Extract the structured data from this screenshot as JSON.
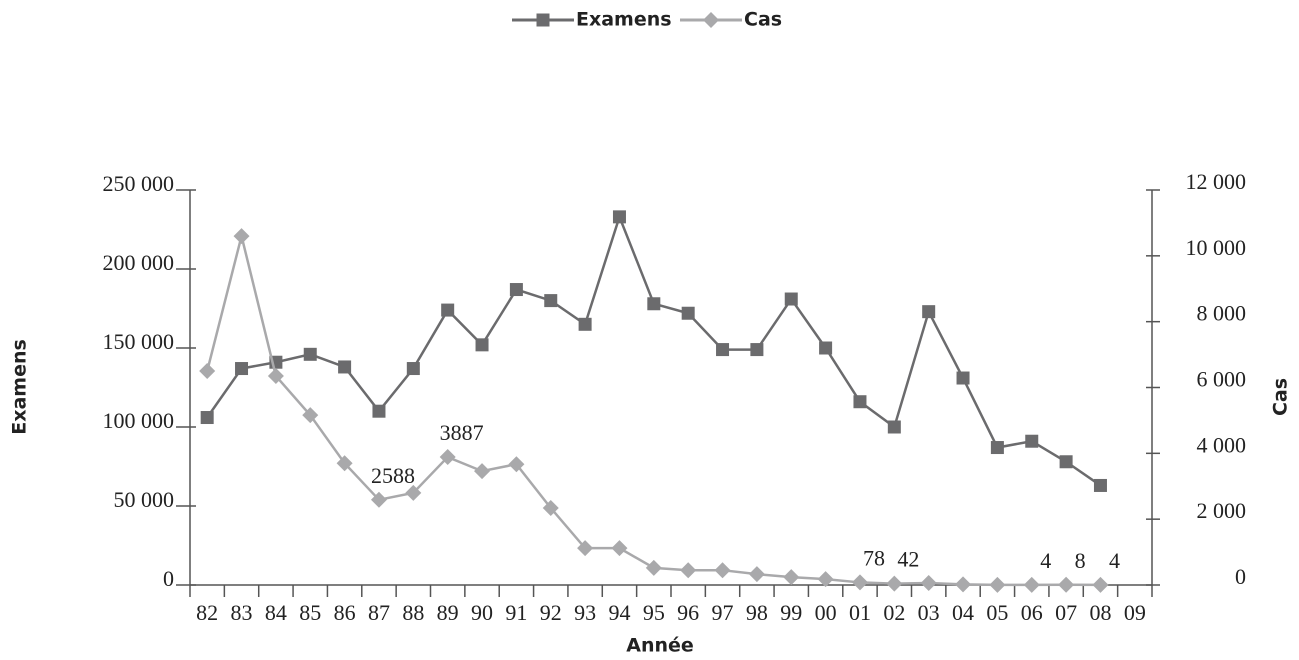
{
  "chart_data": {
    "type": "line",
    "legend": "top",
    "categories": [
      "82",
      "83",
      "84",
      "85",
      "86",
      "87",
      "88",
      "89",
      "90",
      "91",
      "92",
      "93",
      "94",
      "95",
      "96",
      "97",
      "98",
      "99",
      "00",
      "01",
      "02",
      "03",
      "04",
      "05",
      "06",
      "07",
      "08",
      "09"
    ],
    "x_label": "Année",
    "y_label": "Examens",
    "y2_label": "Cas",
    "ylim": [
      0,
      250000
    ],
    "yticks": [
      0,
      {
        "value": 50000,
        "label": "50 000"
      },
      {
        "value": 100000,
        "label": "100 000"
      },
      {
        "value": 150000,
        "label": "150 000"
      },
      {
        "value": 200000,
        "label": "200 000"
      },
      {
        "value": 250000,
        "label": "250 000"
      }
    ],
    "y2lim": [
      0,
      12000
    ],
    "y2ticks": [
      0,
      {
        "value": 2000,
        "label": "2 000"
      },
      {
        "value": 4000,
        "label": "4 000"
      },
      {
        "value": 6000,
        "label": "6 000"
      },
      {
        "value": 8000,
        "label": "8 000"
      },
      {
        "value": 10000,
        "label": "10 000"
      },
      {
        "value": 12000,
        "label": "12 000"
      }
    ],
    "series": [
      {
        "name": "Examens",
        "color": "#6b6b6d",
        "marker": "square",
        "values": [
          106000,
          137000,
          141000,
          146000,
          138000,
          110000,
          137000,
          174000,
          152000,
          187000,
          180000,
          165000,
          233000,
          178000,
          172000,
          149000,
          149000,
          181000,
          150000,
          116000,
          100000,
          173000,
          131000,
          87000,
          91000,
          78000,
          63000,
          null
        ]
      },
      {
        "name": "Cas",
        "color": "#a9a9ab",
        "marker": "diamond",
        "axis": "y2",
        "values": [
          6500,
          10600,
          6350,
          5160,
          3700,
          2588,
          2800,
          3887,
          3460,
          3670,
          2340,
          1120,
          1120,
          520,
          450,
          450,
          330,
          240,
          180,
          78,
          42,
          60,
          20,
          5,
          4,
          8,
          4,
          null
        ],
        "value_labels": [
          null,
          null,
          null,
          null,
          null,
          "2588",
          null,
          "3887",
          null,
          null,
          null,
          null,
          null,
          null,
          null,
          null,
          null,
          null,
          null,
          "78",
          "42",
          null,
          null,
          null,
          "4",
          "8",
          "4",
          null
        ]
      }
    ]
  }
}
